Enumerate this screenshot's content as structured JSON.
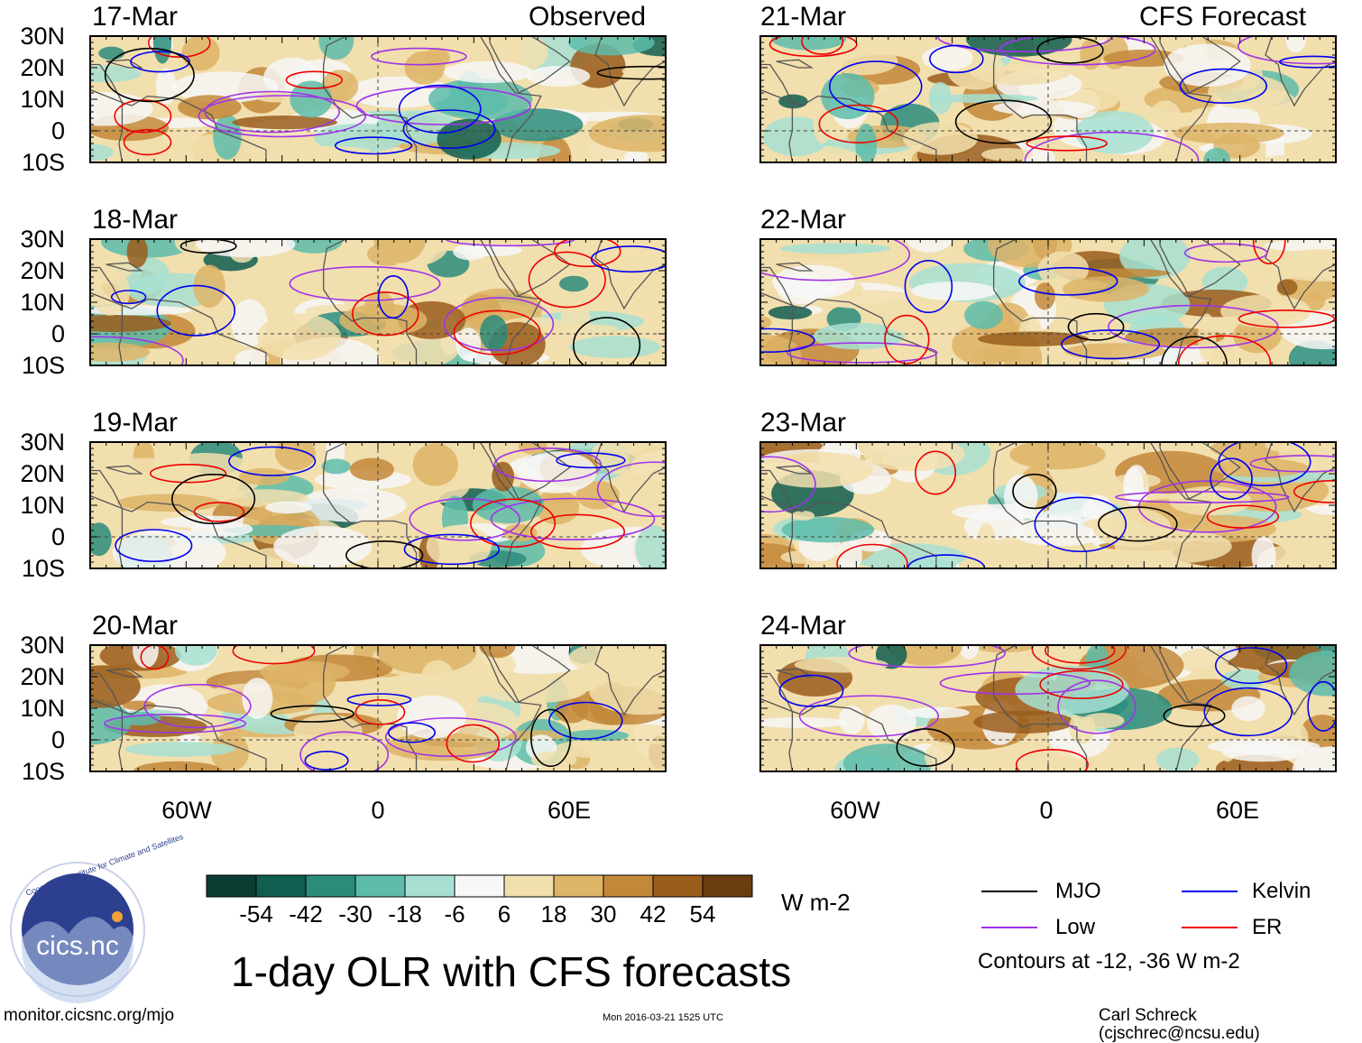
{
  "left_column": {
    "title": "Observed",
    "panels": [
      {
        "date": "17-Mar"
      },
      {
        "date": "18-Mar"
      },
      {
        "date": "19-Mar"
      },
      {
        "date": "20-Mar"
      }
    ]
  },
  "right_column": {
    "title": "CFS Forecast",
    "panels": [
      {
        "date": "21-Mar"
      },
      {
        "date": "22-Mar"
      },
      {
        "date": "23-Mar"
      },
      {
        "date": "24-Mar"
      }
    ]
  },
  "axes": {
    "lat_labels": [
      "30N",
      "20N",
      "10N",
      "0",
      "10S"
    ],
    "lon_labels": [
      "60W",
      "0",
      "60E"
    ]
  },
  "colorbar": {
    "unit": "W m-2",
    "labels": [
      "-54",
      "-42",
      "-30",
      "-18",
      "-6",
      "6",
      "18",
      "30",
      "42",
      "54"
    ],
    "colors": [
      "#0b3d33",
      "#0f5e50",
      "#2b8c7c",
      "#5dbcaa",
      "#a7e0d2",
      "#f7f7f7",
      "#f2dfae",
      "#deb467",
      "#c3883a",
      "#9a5d1c",
      "#6b3d10"
    ]
  },
  "legend": {
    "items": [
      {
        "label": "MJO",
        "color": "#000000"
      },
      {
        "label": "Kelvin",
        "color": "#0000ee"
      },
      {
        "label": "Low",
        "color": "#a033e8"
      },
      {
        "label": "ER",
        "color": "#ee0000"
      }
    ],
    "contour_note": "Contours at -12, -36 W m-2"
  },
  "title": "1-day OLR with CFS forecasts",
  "logo": {
    "text": "cics.nc",
    "ring_text": "Cooperative Institute for Climate and Satellites"
  },
  "footer": {
    "url": "monitor.cicsnc.org/mjo",
    "timestamp": "Mon 2016-03-21 1525 UTC",
    "credit": "Carl Schreck (cjschrec@ncsu.edu)"
  }
}
